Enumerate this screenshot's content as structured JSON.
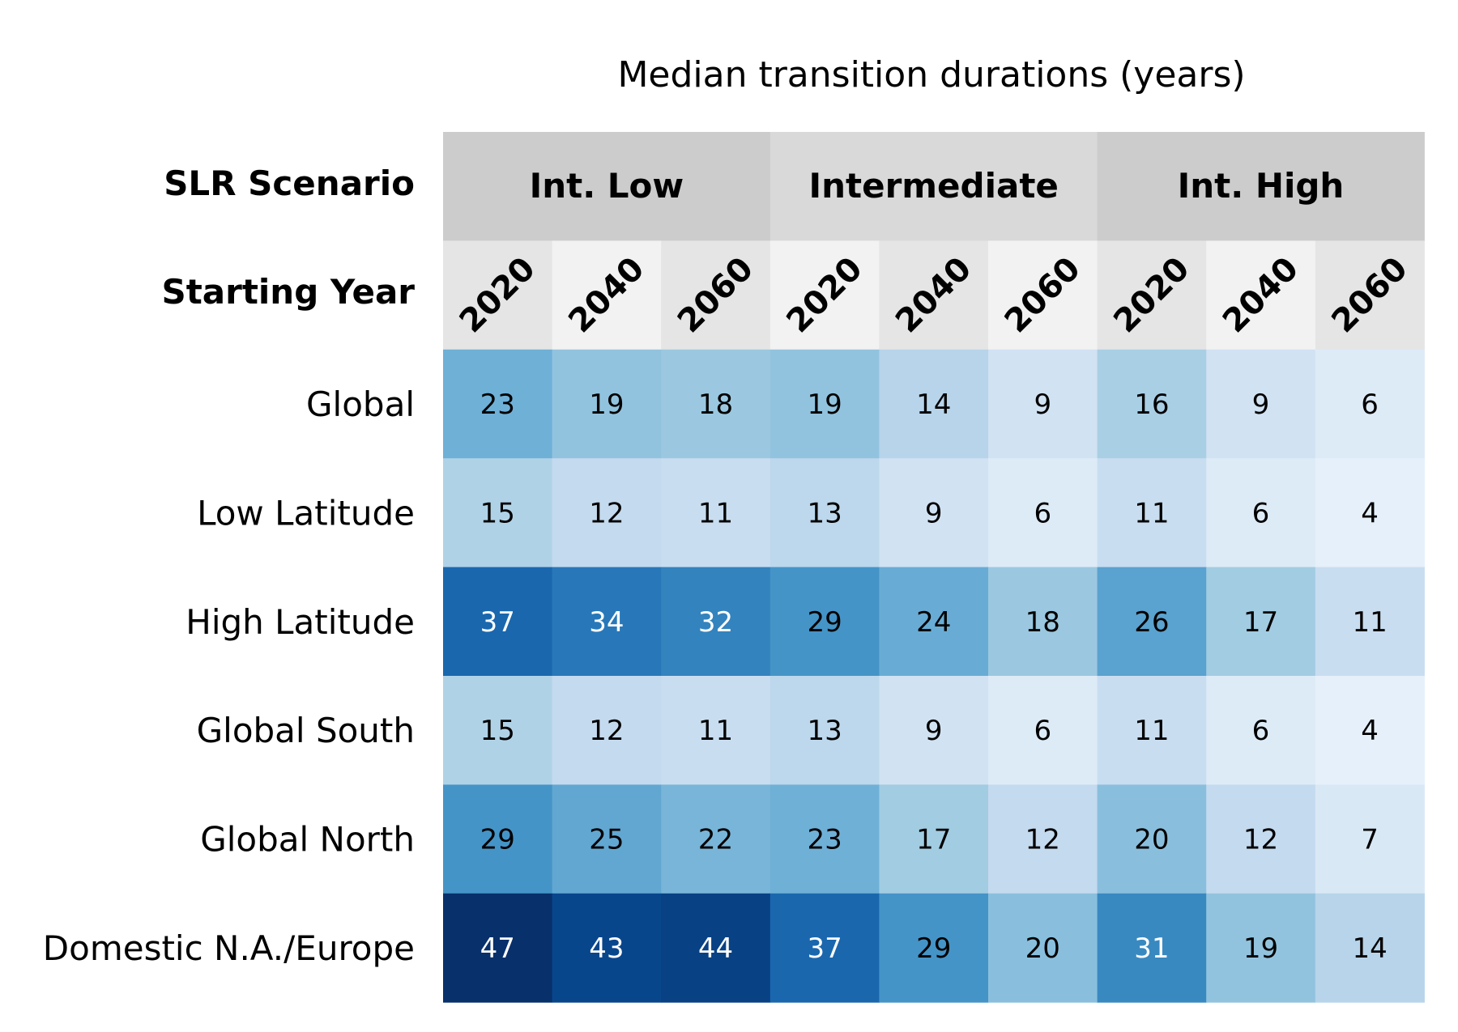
{
  "chart_data": {
    "type": "heatmap",
    "title": "Median transition durations (years)",
    "header_labels": {
      "scenario": "SLR Scenario",
      "year": "Starting Year"
    },
    "scenarios": [
      "Int. Low",
      "Intermediate",
      "Int. High"
    ],
    "years": [
      "2020",
      "2040",
      "2060"
    ],
    "rows": [
      "Global",
      "Low Latitude",
      "High Latitude",
      "Global South",
      "Global North",
      "Domestic N.A./Europe"
    ],
    "values": [
      [
        23,
        19,
        18,
        19,
        14,
        9,
        16,
        9,
        6
      ],
      [
        15,
        12,
        11,
        13,
        9,
        6,
        11,
        6,
        4
      ],
      [
        37,
        34,
        32,
        29,
        24,
        18,
        26,
        17,
        11
      ],
      [
        15,
        12,
        11,
        13,
        9,
        6,
        11,
        6,
        4
      ],
      [
        29,
        25,
        22,
        23,
        17,
        12,
        20,
        12,
        7
      ],
      [
        47,
        43,
        44,
        37,
        29,
        20,
        31,
        19,
        14
      ]
    ],
    "colormap": "Blues",
    "scenario_header_colors": [
      "#cccccc",
      "#d9d9d9",
      "#cccccc"
    ],
    "year_header_colors": [
      "#e5e5e5",
      "#f2f2f2",
      "#e5e5e5",
      "#f2f2f2",
      "#e5e5e5",
      "#f2f2f2",
      "#e5e5e5",
      "#f2f2f2",
      "#e5e5e5"
    ]
  }
}
